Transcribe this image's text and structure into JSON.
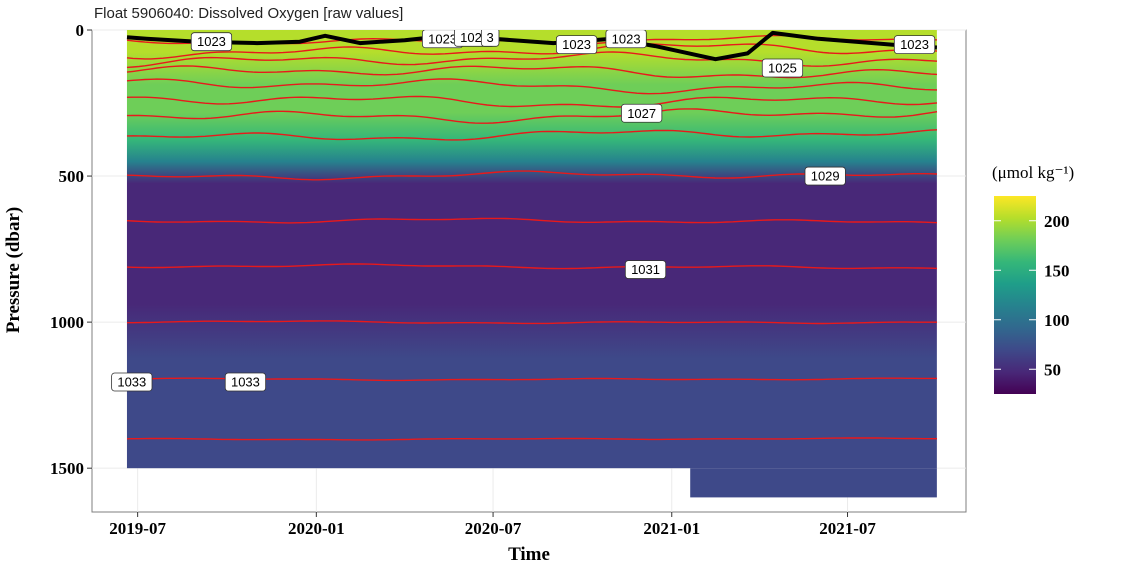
{
  "chart_data": {
    "type": "heatmap",
    "title": "Float 5906040: Dissolved Oxygen [raw values]",
    "xlabel": "Time",
    "ylabel": "Pressure (dbar)",
    "x_range": [
      "2019-05-15",
      "2021-10-31"
    ],
    "y_range": [
      0,
      1650
    ],
    "y_reversed": true,
    "data_extent": {
      "x": [
        "2019-06-20",
        "2021-10-01"
      ],
      "y": [
        0,
        1600
      ]
    },
    "x_ticks": [
      {
        "date": "2019-07-01",
        "label": "2019-07"
      },
      {
        "date": "2020-01-01",
        "label": "2020-01"
      },
      {
        "date": "2020-07-01",
        "label": "2020-07"
      },
      {
        "date": "2021-01-01",
        "label": "2021-01"
      },
      {
        "date": "2021-07-01",
        "label": "2021-07"
      }
    ],
    "y_ticks": [
      {
        "value": 0,
        "label": "0"
      },
      {
        "value": 500,
        "label": "500"
      },
      {
        "value": 1000,
        "label": "1000"
      },
      {
        "value": 1500,
        "label": "1500"
      }
    ],
    "grid": true,
    "colorbar": {
      "title": "(μmol kg⁻¹)",
      "palette": "viridis",
      "colors": [
        "#440154",
        "#482878",
        "#3e4989",
        "#31688e",
        "#26828e",
        "#1f9e89",
        "#35b779",
        "#6ece58",
        "#b5de2b",
        "#fde725"
      ],
      "range": [
        25,
        225
      ],
      "ticks": [
        {
          "value": 50,
          "label": "50"
        },
        {
          "value": 100,
          "label": "100"
        },
        {
          "value": 150,
          "label": "150"
        },
        {
          "value": 200,
          "label": "200"
        }
      ],
      "position": "right"
    },
    "oxygen_profile": [
      {
        "pressure": 0,
        "value": 210
      },
      {
        "pressure": 80,
        "value": 200
      },
      {
        "pressure": 200,
        "value": 180
      },
      {
        "pressure": 300,
        "value": 185
      },
      {
        "pressure": 400,
        "value": 160
      },
      {
        "pressure": 480,
        "value": 110
      },
      {
        "pressure": 560,
        "value": 55
      },
      {
        "pressure": 700,
        "value": 38
      },
      {
        "pressure": 850,
        "value": 42
      },
      {
        "pressure": 1000,
        "value": 52
      },
      {
        "pressure": 1200,
        "value": 60
      },
      {
        "pressure": 1400,
        "value": 68
      },
      {
        "pressure": 1600,
        "value": 72
      }
    ],
    "mixed_layer_line": {
      "color": "#000000",
      "points": [
        {
          "date": "2019-06-20",
          "pressure": 25
        },
        {
          "date": "2019-07-10",
          "pressure": 30
        },
        {
          "date": "2019-09-01",
          "pressure": 40
        },
        {
          "date": "2019-11-01",
          "pressure": 45
        },
        {
          "date": "2019-12-15",
          "pressure": 40
        },
        {
          "date": "2020-01-10",
          "pressure": 20
        },
        {
          "date": "2020-02-15",
          "pressure": 45
        },
        {
          "date": "2020-04-01",
          "pressure": 35
        },
        {
          "date": "2020-05-15",
          "pressure": 20
        },
        {
          "date": "2020-07-01",
          "pressure": 30
        },
        {
          "date": "2020-09-01",
          "pressure": 45
        },
        {
          "date": "2020-11-01",
          "pressure": 30
        },
        {
          "date": "2020-12-15",
          "pressure": 55
        },
        {
          "date": "2021-02-15",
          "pressure": 100
        },
        {
          "date": "2021-03-20",
          "pressure": 80
        },
        {
          "date": "2021-04-15",
          "pressure": 10
        },
        {
          "date": "2021-06-01",
          "pressure": 30
        },
        {
          "date": "2021-08-15",
          "pressure": 50
        },
        {
          "date": "2021-10-01",
          "pressure": 60
        }
      ]
    },
    "density_contours": {
      "color": "#e8191b",
      "levels": [
        {
          "base_pressure": 35,
          "amplitude": 15
        },
        {
          "base_pressure": 70,
          "amplitude": 25
        },
        {
          "base_pressure": 105,
          "amplitude": 25
        },
        {
          "base_pressure": 145,
          "amplitude": 25
        },
        {
          "base_pressure": 190,
          "amplitude": 25
        },
        {
          "base_pressure": 240,
          "amplitude": 25
        },
        {
          "base_pressure": 290,
          "amplitude": 25
        },
        {
          "base_pressure": 360,
          "amplitude": 20
        },
        {
          "base_pressure": 500,
          "amplitude": 15
        },
        {
          "base_pressure": 655,
          "amplitude": 10
        },
        {
          "base_pressure": 810,
          "amplitude": 8
        },
        {
          "base_pressure": 1000,
          "amplitude": 5
        },
        {
          "base_pressure": 1195,
          "amplitude": 4
        },
        {
          "base_pressure": 1400,
          "amplitude": 3
        }
      ]
    },
    "contour_labels": [
      {
        "text": "1023",
        "date": "2019-09-15",
        "pressure": 40
      },
      {
        "text": "1023",
        "date": "2020-05-10",
        "pressure": 30
      },
      {
        "text": "1023",
        "date": "2020-06-12",
        "pressure": 25
      },
      {
        "text": "3",
        "date": "2020-06-28",
        "pressure": 25
      },
      {
        "text": "1023",
        "date": "2020-09-25",
        "pressure": 50
      },
      {
        "text": "1023",
        "date": "2020-11-15",
        "pressure": 30
      },
      {
        "text": "1025",
        "date": "2021-04-25",
        "pressure": 130
      },
      {
        "text": "1023",
        "date": "2021-09-08",
        "pressure": 50
      },
      {
        "text": "1027",
        "date": "2020-12-01",
        "pressure": 285
      },
      {
        "text": "1029",
        "date": "2021-06-08",
        "pressure": 500
      },
      {
        "text": "1031",
        "date": "2020-12-05",
        "pressure": 820
      },
      {
        "text": "1033",
        "date": "2019-06-25",
        "pressure": 1205
      },
      {
        "text": "1033",
        "date": "2019-10-20",
        "pressure": 1205
      }
    ]
  }
}
